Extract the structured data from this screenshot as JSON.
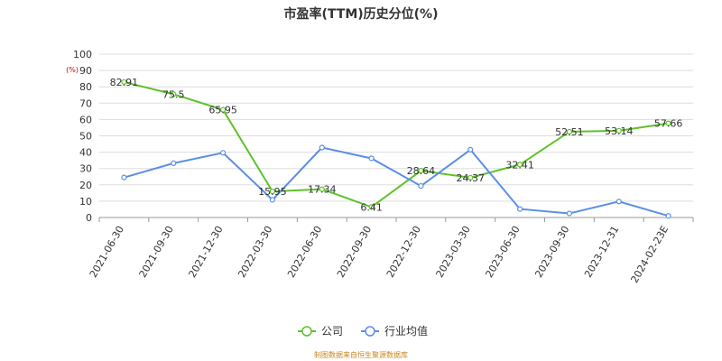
{
  "chart_data": {
    "type": "line",
    "title": "市盈率(TTM)历史分位(%)",
    "unit_label": "(%)",
    "ylim": [
      0,
      100
    ],
    "yticks": [
      0,
      10,
      20,
      30,
      40,
      50,
      60,
      70,
      80,
      90,
      100
    ],
    "categories": [
      "2021-06-30",
      "2021-09-30",
      "2021-12-30",
      "2022-03-30",
      "2022-06-30",
      "2022-09-30",
      "2022-12-30",
      "2023-03-30",
      "2023-06-30",
      "2023-09-30",
      "2023-12-31",
      "2024-02-23E"
    ],
    "grid": true,
    "legend_position": "bottom",
    "series": [
      {
        "name": "公司",
        "color": "#5ec22a",
        "values": [
          82.91,
          75.5,
          65.95,
          15.95,
          17.34,
          6.41,
          28.64,
          24.37,
          32.41,
          52.51,
          53.14,
          57.66
        ],
        "labels": [
          "82.91",
          "75.5",
          "65.95",
          "15.95",
          "17.34",
          "6.41",
          "28.64",
          "24.37",
          "32.41",
          "52.51",
          "53.14",
          "57.66"
        ]
      },
      {
        "name": "行业均值",
        "color": "#5b8ee6",
        "values": [
          24.5,
          33.2,
          39.6,
          10.8,
          42.8,
          36.2,
          19.3,
          41.5,
          5.2,
          2.5,
          9.8,
          1.0
        ]
      }
    ],
    "source": "制图数据来自恒生聚源数据库"
  }
}
